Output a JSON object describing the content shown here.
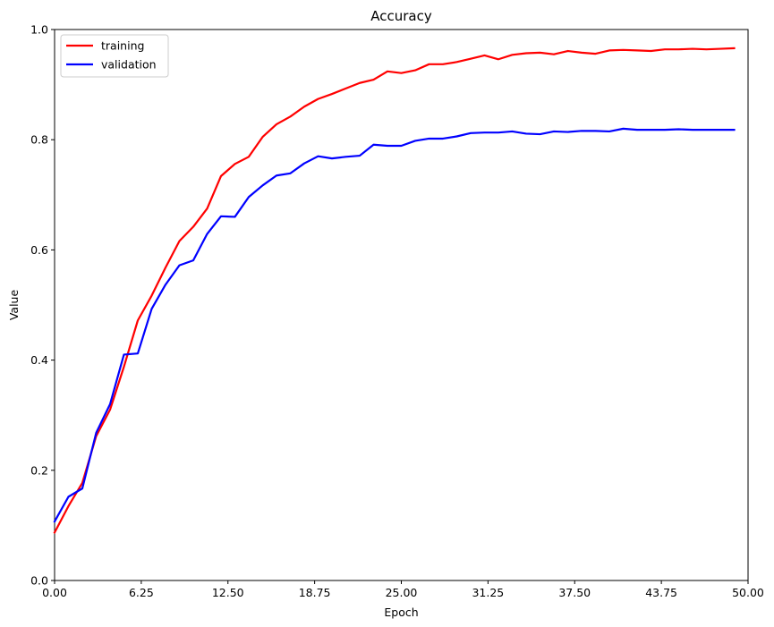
{
  "chart_data": {
    "type": "line",
    "title": "Accuracy",
    "xlabel": "Epoch",
    "ylabel": "Value",
    "xlim": [
      0,
      50
    ],
    "ylim": [
      0,
      1
    ],
    "xticks": [
      0,
      6.25,
      12.5,
      18.75,
      25,
      31.25,
      37.5,
      43.75,
      50
    ],
    "xtick_labels": [
      "0.00",
      "6.25",
      "12.50",
      "18.75",
      "25.00",
      "31.25",
      "37.50",
      "43.75",
      "50.00"
    ],
    "yticks": [
      0,
      0.2,
      0.4,
      0.6,
      0.8,
      1.0
    ],
    "ytick_labels": [
      "0.0",
      "0.2",
      "0.4",
      "0.6",
      "0.8",
      "1.0"
    ],
    "grid": false,
    "legend_position": "top-left",
    "x": [
      0,
      1,
      2,
      3,
      4,
      5,
      6,
      7,
      8,
      9,
      10,
      11,
      12,
      13,
      14,
      15,
      16,
      17,
      18,
      19,
      20,
      21,
      22,
      23,
      24,
      25,
      26,
      27,
      28,
      29,
      30,
      31,
      32,
      33,
      34,
      35,
      36,
      37,
      38,
      39,
      40,
      41,
      42,
      43,
      44,
      45,
      46,
      47,
      48,
      49
    ],
    "series": [
      {
        "name": "training",
        "color": "#ff0000",
        "values": [
          0.087,
          0.135,
          0.177,
          0.262,
          0.31,
          0.388,
          0.472,
          0.517,
          0.568,
          0.616,
          0.642,
          0.675,
          0.734,
          0.756,
          0.769,
          0.805,
          0.828,
          0.842,
          0.86,
          0.874,
          0.883,
          0.893,
          0.903,
          0.909,
          0.924,
          0.921,
          0.926,
          0.937,
          0.937,
          0.941,
          0.947,
          0.953,
          0.946,
          0.954,
          0.957,
          0.958,
          0.955,
          0.961,
          0.958,
          0.956,
          0.962,
          0.963,
          0.962,
          0.961,
          0.964,
          0.964,
          0.965,
          0.964,
          0.965,
          0.966
        ]
      },
      {
        "name": "validation",
        "color": "#0000ff",
        "values": [
          0.107,
          0.152,
          0.167,
          0.268,
          0.32,
          0.41,
          0.412,
          0.493,
          0.537,
          0.572,
          0.581,
          0.629,
          0.661,
          0.66,
          0.696,
          0.717,
          0.735,
          0.739,
          0.757,
          0.77,
          0.766,
          0.769,
          0.771,
          0.791,
          0.789,
          0.789,
          0.798,
          0.802,
          0.802,
          0.806,
          0.812,
          0.813,
          0.813,
          0.815,
          0.811,
          0.81,
          0.815,
          0.814,
          0.816,
          0.816,
          0.815,
          0.82,
          0.818,
          0.818,
          0.818,
          0.819,
          0.818,
          0.818,
          0.818,
          0.818
        ]
      }
    ]
  }
}
